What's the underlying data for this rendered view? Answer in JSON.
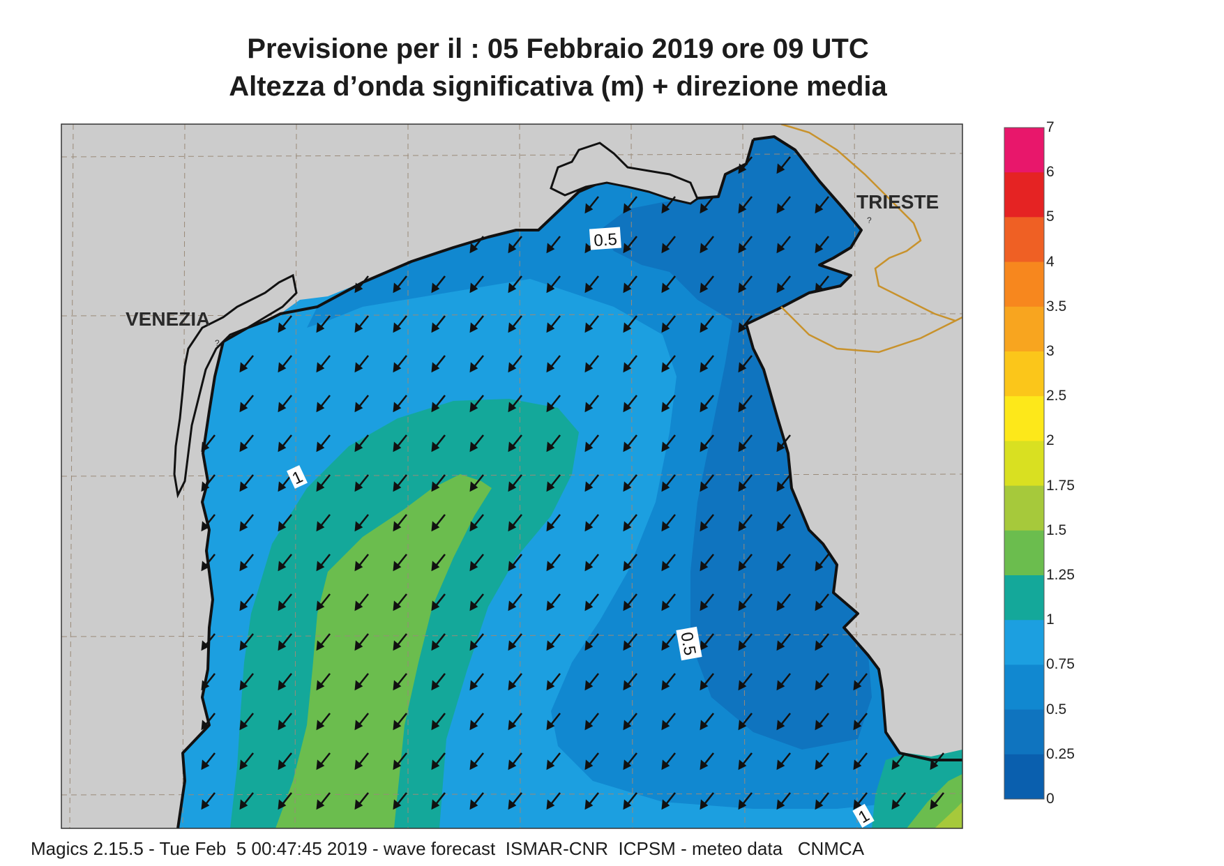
{
  "title_line1": "Previsione per il  :  05  Febbraio 2019   ore 09 UTC",
  "title_line2": "Altezza d’onda significativa (m) + direzione media",
  "cities": {
    "venezia": "VENEZIA",
    "trieste": "TRIESTE"
  },
  "contour_labels": {
    "top_05": "0.5",
    "mid_1": "1",
    "right_05": "0.5",
    "bottom_1": "1"
  },
  "legend": {
    "labels": [
      "7",
      "6",
      "5",
      "4",
      "3.5",
      "3",
      "2.5",
      "2",
      "1.75",
      "1.5",
      "1.25",
      "1",
      "0.75",
      "0.5",
      "0.25",
      "0"
    ],
    "colors": [
      "#e8176b",
      "#e52323",
      "#ef6024",
      "#f7871e",
      "#f8a51f",
      "#fbc61a",
      "#fde81a",
      "#d9e021",
      "#a6c93b",
      "#6bbd4e",
      "#14a89a",
      "#1c9fe0",
      "#1188d0",
      "#0f74bf",
      "#0a5fae"
    ]
  },
  "colors": {
    "land": "#cccccc",
    "sea_light": "#1c9fe0",
    "sea_mid": "#1188d0",
    "sea_dark": "#0f74bf",
    "teal": "#14a89a",
    "green": "#6bbd4e",
    "lime": "#a6c93b",
    "border": "#c8922c"
  },
  "footer": "Magics 2.15.5 - Tue Feb  5 00:47:45 2019 - wave forecast  ISMAR-CNR  ICPSM - meteo data   CNMCA"
}
